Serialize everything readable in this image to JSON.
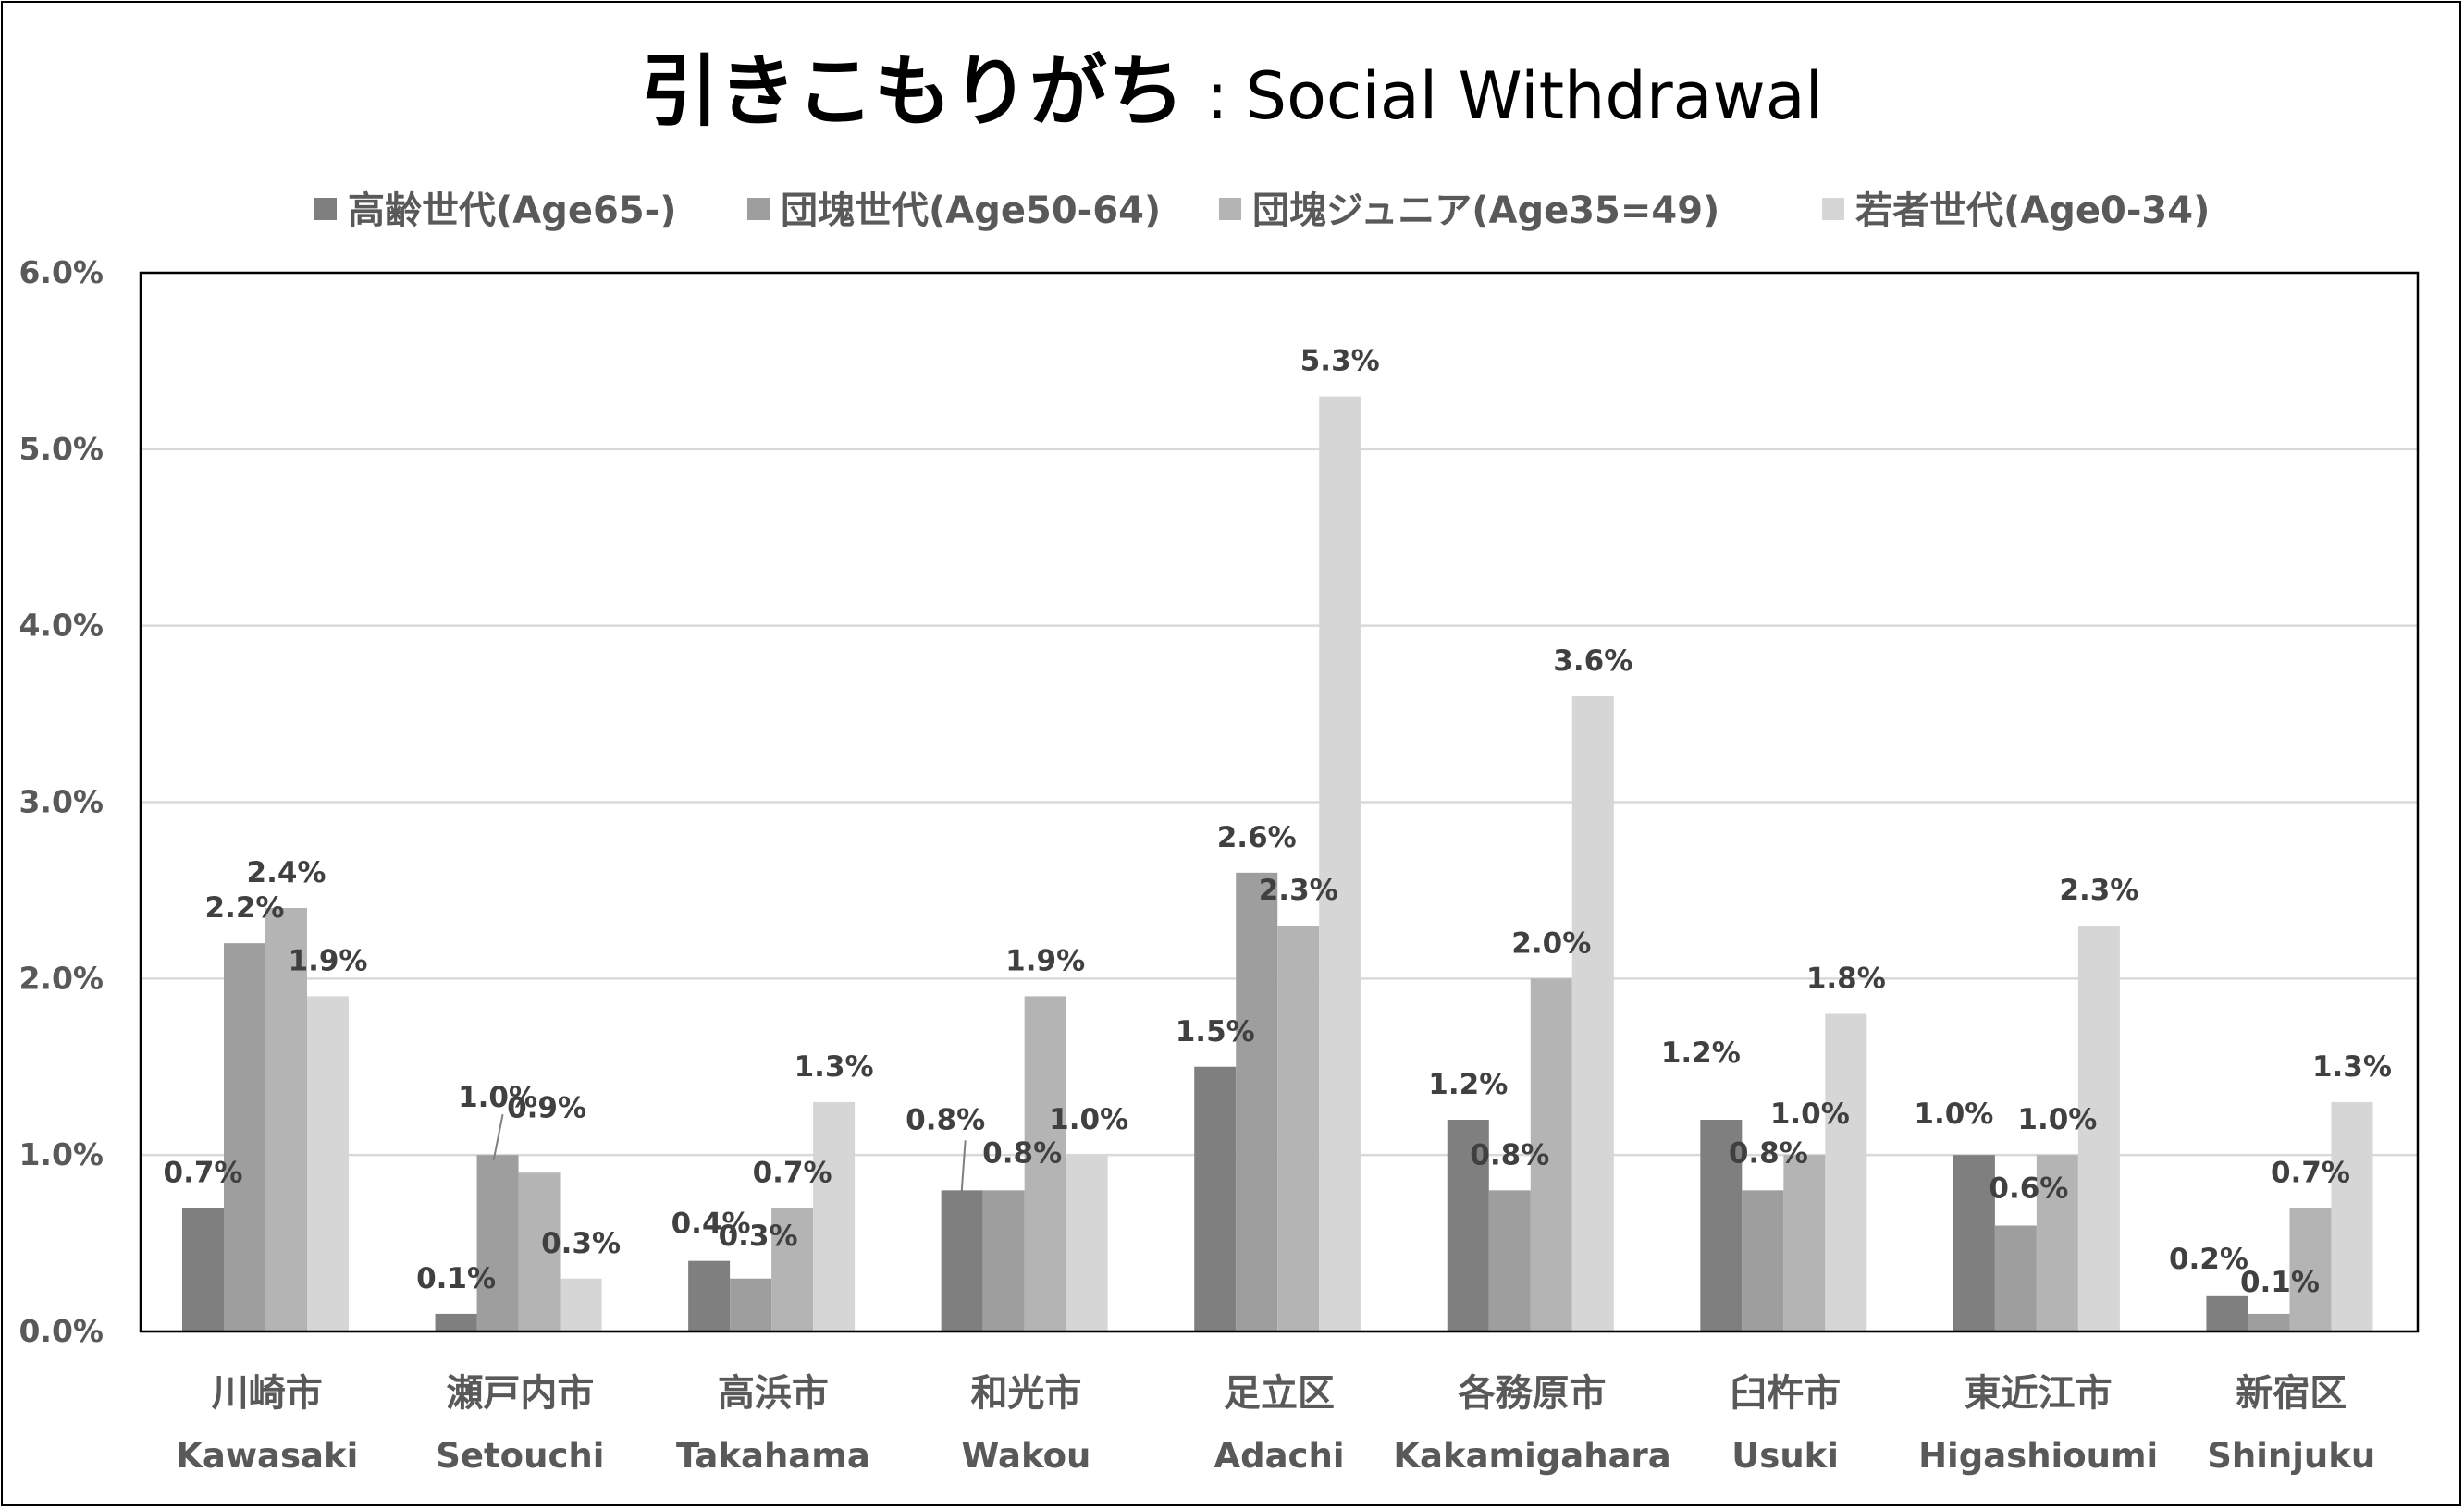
{
  "chart_data": {
    "type": "bar",
    "title_jp": "引きこもりがち",
    "title_sep": ":",
    "title_en": "Social Withdrawal",
    "categories": [
      {
        "jp": "川崎市",
        "en": "Kawasaki"
      },
      {
        "jp": "瀬戸内市",
        "en": "Setouchi"
      },
      {
        "jp": "高浜市",
        "en": "Takahama"
      },
      {
        "jp": "和光市",
        "en": "Wakou"
      },
      {
        "jp": "足立区",
        "en": "Adachi"
      },
      {
        "jp": "各務原市",
        "en": "Kakamigahara"
      },
      {
        "jp": "臼杵市",
        "en": "Usuki"
      },
      {
        "jp": "東近江市",
        "en": "Higashioumi"
      },
      {
        "jp": "新宿区",
        "en": "Shinjuku"
      }
    ],
    "series": [
      {
        "name": "高齢世代(Age65-)",
        "color": "#7f7f7f",
        "values": [
          0.7,
          0.1,
          0.4,
          0.8,
          1.5,
          1.2,
          1.2,
          1.0,
          0.2
        ],
        "labels": [
          "0.7%",
          "0.1%",
          "0.4%",
          "0.8%",
          "1.5%",
          "1.2%",
          "1.2%",
          "1.0%",
          "0.2%"
        ]
      },
      {
        "name": "団塊世代(Age50-64)",
        "color": "#9e9e9e",
        "values": [
          2.2,
          1.0,
          0.3,
          0.8,
          2.6,
          0.8,
          0.8,
          0.6,
          0.1
        ],
        "labels": [
          "2.2%",
          "1.0%",
          "0.3%",
          "0.8%",
          "2.6%",
          "0.8%",
          "0.8%",
          "0.6%",
          "0.1%"
        ]
      },
      {
        "name": "団塊ジュニア(Age35=49)",
        "color": "#b4b4b4",
        "values": [
          2.4,
          0.9,
          0.7,
          1.9,
          2.3,
          2.0,
          1.0,
          1.0,
          0.7
        ],
        "labels": [
          "2.4%",
          "0.9%",
          "0.7%",
          "1.9%",
          "2.3%",
          "2.0%",
          "1.0%",
          "1.0%",
          "0.7%"
        ]
      },
      {
        "name": "若者世代(Age0-34)",
        "color": "#d6d6d6",
        "values": [
          1.9,
          0.3,
          1.3,
          1.0,
          5.3,
          3.6,
          1.8,
          2.3,
          1.3
        ],
        "labels": [
          "1.9%",
          "0.3%",
          "1.3%",
          "1.0%",
          "5.3%",
          "3.6%",
          "1.8%",
          "2.3%",
          "1.3%"
        ]
      }
    ],
    "ylim": [
      0,
      6.0
    ],
    "yticks": [
      "0.0%",
      "1.0%",
      "2.0%",
      "3.0%",
      "4.0%",
      "5.0%",
      "6.0%"
    ],
    "grid": true,
    "legend_position": "top"
  }
}
